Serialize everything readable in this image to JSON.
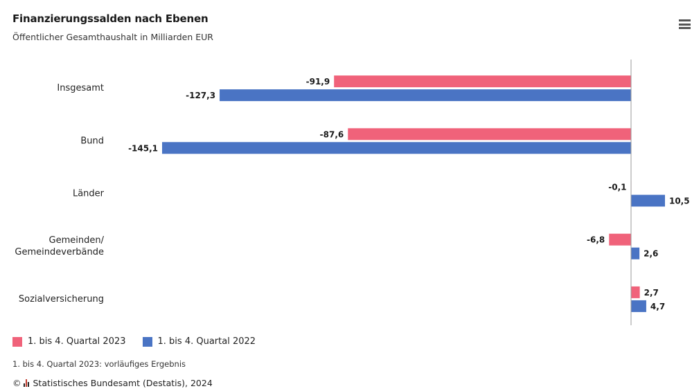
{
  "header": {
    "title": "Finanzierungssalden nach Ebenen",
    "subtitle": "Öffentlicher Gesamthaushalt in Milliarden EUR",
    "menu_icon": "hamburger-menu-icon"
  },
  "colors": {
    "series_2023": "#f0627a",
    "series_2022": "#4a74c4",
    "axis": "#9a9a9a"
  },
  "chart_data": {
    "type": "bar",
    "orientation": "horizontal",
    "title": "Finanzierungssalden nach Ebenen",
    "subtitle": "Öffentlicher Gesamthaushalt in Milliarden EUR",
    "categories": [
      "Insgesamt",
      "Bund",
      "Länder",
      "Gemeinden/\nGemeindeverbände",
      "Sozialversicherung"
    ],
    "series": [
      {
        "name": "1. bis 4. Quartal 2023",
        "values": [
          -91.9,
          -87.6,
          -0.1,
          -6.8,
          2.7
        ]
      },
      {
        "name": "1. bis 4. Quartal 2022",
        "values": [
          -127.3,
          -145.1,
          10.5,
          2.6,
          4.7
        ]
      }
    ],
    "value_labels": [
      [
        "-91,9",
        "-87,6",
        "-0,1",
        "-6,8",
        "2,7"
      ],
      [
        "-127,3",
        "-145,1",
        "10,5",
        "2,6",
        "4,7"
      ]
    ],
    "xlim": [
      -145.1,
      10.5
    ],
    "grid": false,
    "legend_position": "bottom-left"
  },
  "legend": {
    "items": [
      {
        "label": "1. bis 4. Quartal 2023"
      },
      {
        "label": "1. bis 4. Quartal 2022"
      }
    ]
  },
  "footnote": "1. bis 4. Quartal 2023: vorläufiges Ergebnis",
  "source": "Statistisches Bundesamt (Destatis), 2024",
  "source_prefix": "©"
}
